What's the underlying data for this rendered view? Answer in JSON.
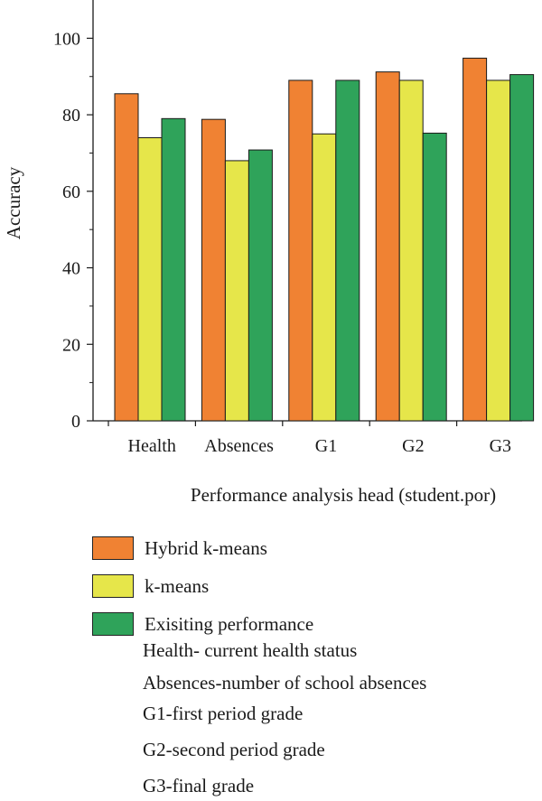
{
  "chart_data": {
    "type": "bar",
    "categories": [
      "Health",
      "Absences",
      "G1",
      "G2",
      "G3"
    ],
    "series": [
      {
        "name": "Hybrid k-means",
        "color": "#F08233",
        "values": [
          85.5,
          78.8,
          89,
          91.2,
          94.8
        ]
      },
      {
        "name": "k-means",
        "color": "#E6E64A",
        "values": [
          74,
          68,
          75,
          89,
          89
        ]
      },
      {
        "name": "Exisiting performance",
        "color": "#2FA35A",
        "values": [
          79,
          70.8,
          89,
          75.2,
          90.5
        ]
      }
    ],
    "xlabel": "Performance analysis head (student.por)",
    "ylabel": "Accuracy",
    "ylim": [
      0,
      110
    ],
    "yticks": [
      0,
      20,
      40,
      60,
      80,
      100
    ],
    "grid": false,
    "legend_placement": "bottom"
  },
  "notes": [
    "Health- current health status",
    "Absences-number of school absences",
    "G1-first period grade",
    "G2-second period grade",
    "G3-final grade"
  ]
}
